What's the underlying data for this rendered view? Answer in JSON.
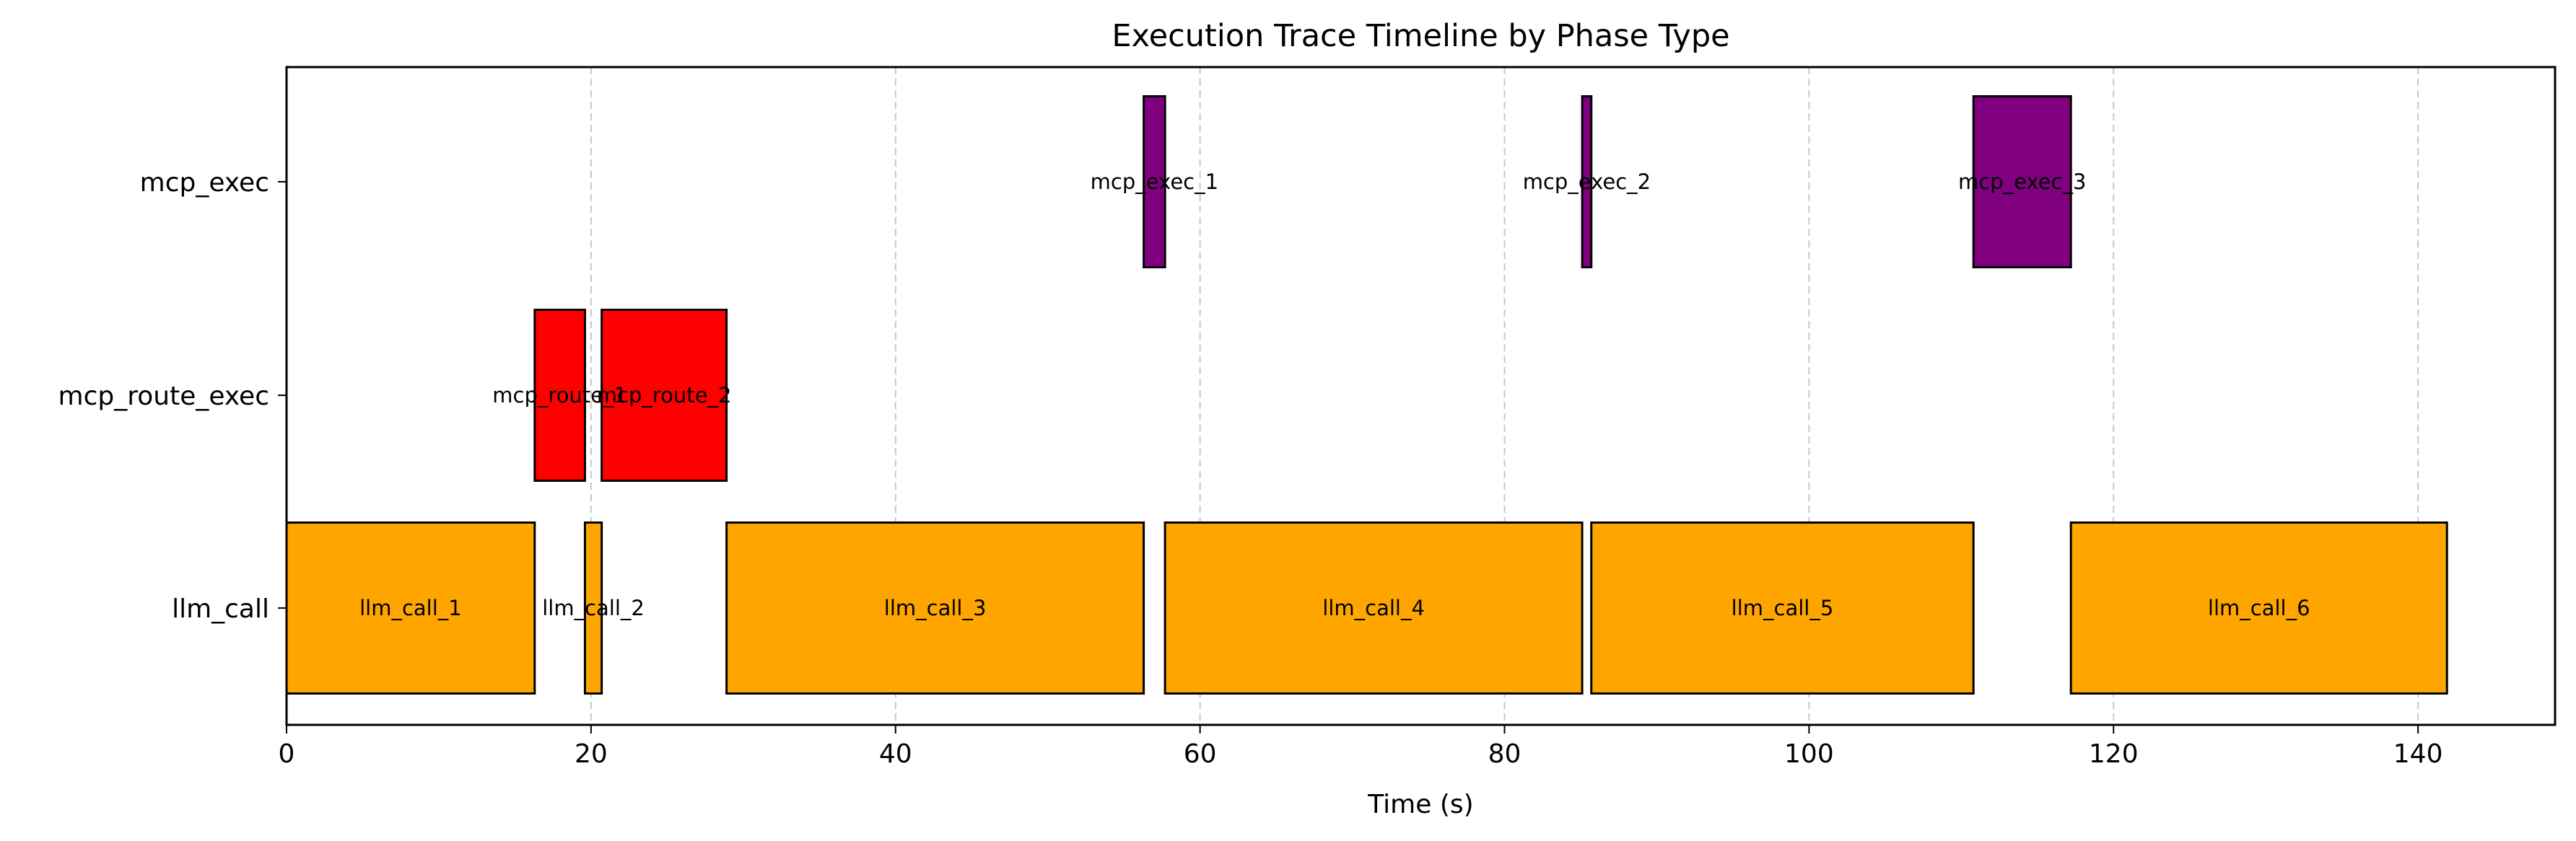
{
  "chart_data": {
    "type": "timeline",
    "title": "Execution Trace Timeline by Phase Type",
    "xlabel": "Time (s)",
    "ylabel": "",
    "xlim": [
      0,
      149
    ],
    "xticks": [
      0,
      20,
      40,
      60,
      80,
      100,
      120,
      140
    ],
    "grid": "x-dashed",
    "categories": [
      "llm_call",
      "mcp_route_exec",
      "mcp_exec"
    ],
    "colors": {
      "llm_call": "#ffa500",
      "mcp_route_exec": "#ff0000",
      "mcp_exec": "#800080"
    },
    "bars": [
      {
        "label": "llm_call_1",
        "category": "llm_call",
        "start": 0.0,
        "end": 16.3
      },
      {
        "label": "llm_call_2",
        "category": "llm_call",
        "start": 19.6,
        "end": 20.7
      },
      {
        "label": "llm_call_3",
        "category": "llm_call",
        "start": 28.9,
        "end": 56.3
      },
      {
        "label": "llm_call_4",
        "category": "llm_call",
        "start": 57.7,
        "end": 85.1
      },
      {
        "label": "llm_call_5",
        "category": "llm_call",
        "start": 85.7,
        "end": 110.8
      },
      {
        "label": "llm_call_6",
        "category": "llm_call",
        "start": 117.2,
        "end": 141.9
      },
      {
        "label": "mcp_route_1",
        "category": "mcp_route_exec",
        "start": 16.3,
        "end": 19.6
      },
      {
        "label": "mcp_route_2",
        "category": "mcp_route_exec",
        "start": 20.7,
        "end": 28.9
      },
      {
        "label": "mcp_exec_1",
        "category": "mcp_exec",
        "start": 56.3,
        "end": 57.7
      },
      {
        "label": "mcp_exec_2",
        "category": "mcp_exec",
        "start": 85.1,
        "end": 85.7
      },
      {
        "label": "mcp_exec_3",
        "category": "mcp_exec",
        "start": 110.8,
        "end": 117.2
      }
    ]
  }
}
